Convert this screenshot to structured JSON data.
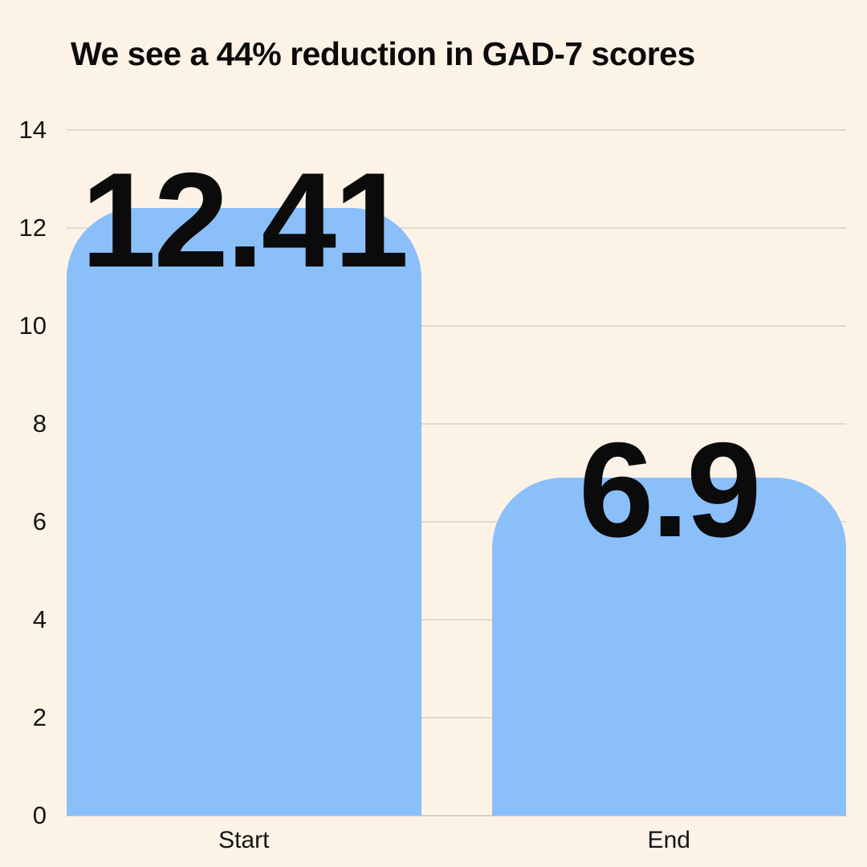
{
  "chart_data": {
    "type": "bar",
    "title": "We see a 44% reduction in GAD-7 scores",
    "categories": [
      "Start",
      "End"
    ],
    "values": [
      12.41,
      6.9
    ],
    "value_labels": [
      "12.41",
      "6.9"
    ],
    "xlabel": "",
    "ylabel": "",
    "ylim": [
      0,
      14
    ],
    "yticks": [
      0,
      2,
      4,
      6,
      8,
      10,
      12,
      14
    ],
    "grid": true,
    "legend": false,
    "colors": {
      "background": "#FCF2E6",
      "bar": "#8ABFFA",
      "gridline": "#E2D8CD",
      "baseline": "#D8D0C6",
      "text": "#0B0B0B"
    }
  }
}
